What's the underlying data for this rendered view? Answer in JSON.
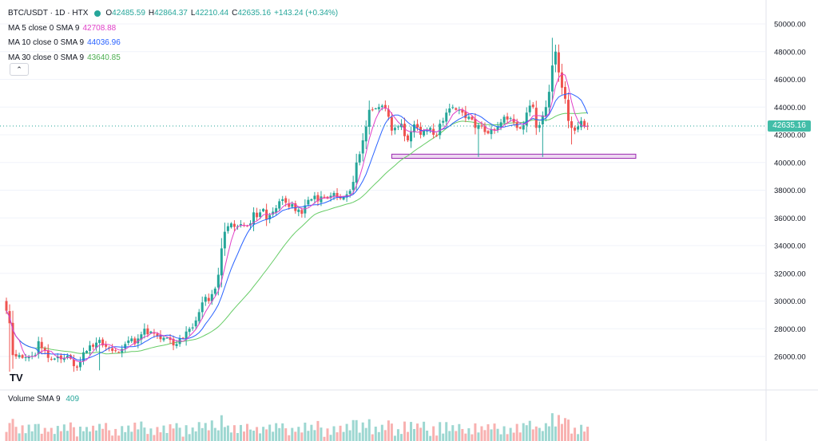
{
  "header": {
    "symbol": "BTC/USDT · 1D · HTX",
    "ohlc": [
      {
        "k": "O",
        "v": "42485.59"
      },
      {
        "k": "H",
        "v": "42864.37"
      },
      {
        "k": "L",
        "v": "42210.44"
      },
      {
        "k": "C",
        "v": "42635.16"
      }
    ],
    "change": "+143.24 (+0.34%)"
  },
  "indicators": [
    {
      "label": "MA 5 close 0 SMA 9",
      "value": "42708.88",
      "color": "#e040c8"
    },
    {
      "label": "MA 10 close 0 SMA 9",
      "value": "44036.96",
      "color": "#2962ff"
    },
    {
      "label": "MA 30 close 0 SMA 9",
      "value": "43640.85",
      "color": "#66cc66"
    }
  ],
  "volume_legend": {
    "label": "Volume SMA 9",
    "value": "409"
  },
  "last_price_label": "42635.16",
  "collapse_glyph": "⌃",
  "logo_text": "TV",
  "colors": {
    "up": "#26a69a",
    "down": "#ef5350",
    "ma5": "#e040c8",
    "ma10": "#2962ff",
    "ma30": "#66cc66",
    "zone": "#9c27b0"
  },
  "chart_data": {
    "type": "candlestick",
    "ylim": [
      24800,
      51000
    ],
    "y_ticks": [
      26000,
      28000,
      30000,
      32000,
      34000,
      36000,
      38000,
      40000,
      42000,
      44000,
      46000,
      48000,
      50000
    ],
    "y_tick_labels": [
      "26000.00",
      "28000.00",
      "30000.00",
      "32000.00",
      "34000.00",
      "36000.00",
      "38000.00",
      "40000.00",
      "42000.00",
      "44000.00",
      "46000.00",
      "48000.00",
      "50000.00"
    ],
    "last_price": 42635.16,
    "zone": {
      "low": 40300,
      "high": 40600,
      "from_index": 120,
      "to_index": 196
    },
    "close": [
      29300,
      28400,
      26100,
      26000,
      26100,
      25900,
      25950,
      26000,
      26050,
      26100,
      27100,
      26600,
      26400,
      25900,
      25800,
      25850,
      26000,
      25800,
      25900,
      26050,
      25850,
      25300,
      25200,
      25600,
      26300,
      26400,
      26800,
      26700,
      27000,
      27200,
      26800,
      26700,
      26600,
      26400,
      26400,
      26300,
      26550,
      26900,
      27150,
      27300,
      26900,
      27300,
      27600,
      28000,
      27600,
      27800,
      27650,
      27500,
      27250,
      27350,
      27350,
      27200,
      26800,
      26900,
      27300,
      27300,
      27800,
      28000,
      28100,
      28600,
      29200,
      29900,
      30300,
      30000,
      30500,
      30900,
      31900,
      33800,
      35000,
      35400,
      35600,
      35350,
      35400,
      35550,
      35450,
      35400,
      35600,
      36400,
      36050,
      36400,
      36650,
      35900,
      36200,
      36450,
      36700,
      37200,
      37350,
      37100,
      36800,
      37000,
      36500,
      36600,
      36300,
      36900,
      37300,
      37350,
      37600,
      37200,
      37550,
      37500,
      37400,
      37600,
      37800,
      37500,
      37400,
      37500,
      37700,
      37950,
      38600,
      40000,
      40600,
      41600,
      42600,
      43800,
      43800,
      43900,
      44000,
      44100,
      43900,
      43300,
      42300,
      42500,
      42600,
      42800,
      41900,
      41600,
      42200,
      42750,
      42500,
      42000,
      42300,
      42300,
      42500,
      42000,
      41950,
      42800,
      43000,
      43600,
      43900,
      44000,
      43800,
      43800,
      43600,
      43200,
      43300,
      43100,
      42500,
      42700,
      42600,
      42200,
      42100,
      42400,
      42300,
      42600,
      42900,
      43300,
      43100,
      43200,
      42900,
      42500,
      42450,
      42700,
      43600,
      44100,
      44000,
      42500,
      42700,
      43400,
      44000,
      45100,
      47000,
      48000,
      46500,
      45400,
      44600,
      43000,
      42500,
      42300,
      42600,
      43000,
      42600,
      42635
    ]
  }
}
